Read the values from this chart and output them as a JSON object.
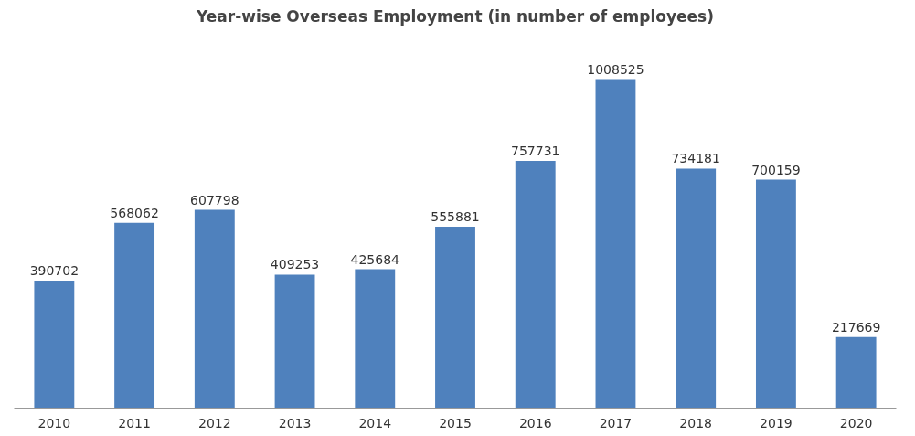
{
  "chart_data": {
    "type": "bar",
    "title": "Year-wise Overseas Employment (in number of employees)",
    "categories": [
      "2010",
      "2011",
      "2012",
      "2013",
      "2014",
      "2015",
      "2016",
      "2017",
      "2018",
      "2019",
      "2020"
    ],
    "values": [
      390702,
      568062,
      607798,
      409253,
      425684,
      555881,
      757731,
      1008525,
      734181,
      700159,
      217669
    ],
    "color": "#4f81bd",
    "data_labels": true,
    "tick_labels": "x",
    "grid": false
  }
}
